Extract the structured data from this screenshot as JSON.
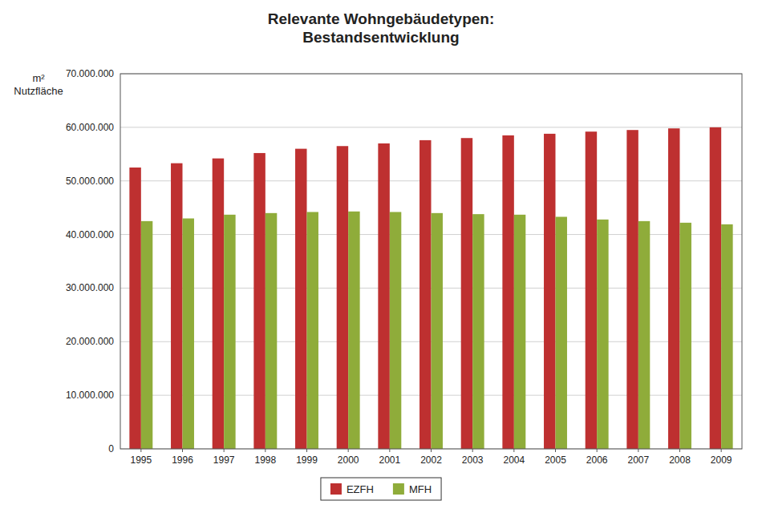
{
  "chart_data": {
    "type": "bar",
    "title": "Relevante Wohngebäudetypen:\nBestandsentwicklung",
    "ylabel": "m²\nNutzfläche",
    "categories": [
      "1995",
      "1996",
      "1997",
      "1998",
      "1999",
      "2000",
      "2001",
      "2002",
      "2003",
      "2004",
      "2005",
      "2006",
      "2007",
      "2008",
      "2009"
    ],
    "series": [
      {
        "name": "EZFH",
        "color": "#be3030",
        "values": [
          52500000,
          53300000,
          54200000,
          55200000,
          56000000,
          56500000,
          57000000,
          57600000,
          58000000,
          58500000,
          58800000,
          59200000,
          59500000,
          59800000,
          60000000
        ]
      },
      {
        "name": "MFH",
        "color": "#8fac3a",
        "values": [
          42500000,
          43000000,
          43700000,
          44000000,
          44200000,
          44300000,
          44200000,
          44000000,
          43800000,
          43700000,
          43300000,
          42800000,
          42500000,
          42200000,
          41900000
        ]
      }
    ],
    "ylim": [
      0,
      70000000
    ],
    "yticks": [
      0,
      {
        "value": 10000000,
        "label": "10.000.000"
      },
      {
        "value": 20000000,
        "label": "20.000.000"
      },
      {
        "value": 30000000,
        "label": "30.000.000"
      },
      {
        "value": 40000000,
        "label": "40.000.000"
      },
      {
        "value": 50000000,
        "label": "50.000.000"
      },
      {
        "value": 60000000,
        "label": "60.000.000"
      },
      {
        "value": 70000000,
        "label": "70.000.000"
      }
    ],
    "grid": true,
    "legend": "bottom"
  }
}
